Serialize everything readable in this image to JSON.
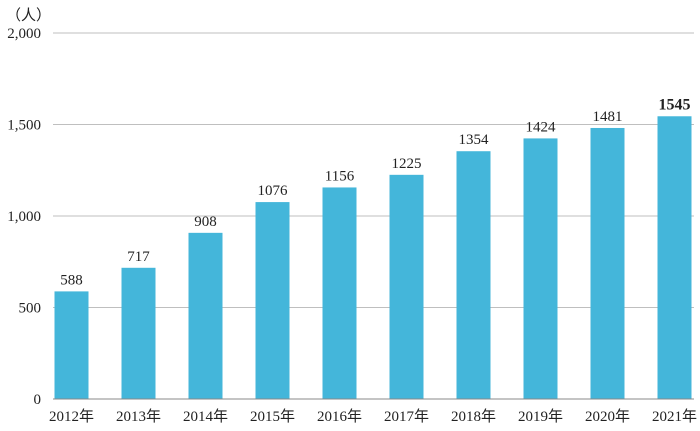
{
  "chart_data": {
    "type": "bar",
    "unit_label": "（人）",
    "categories": [
      "2012年",
      "2013年",
      "2014年",
      "2015年",
      "2016年",
      "2017年",
      "2018年",
      "2019年",
      "2020年",
      "2021年"
    ],
    "series": [
      {
        "values": [
          588,
          717,
          908,
          1076,
          1156,
          1225,
          1354,
          1424,
          1481,
          1545
        ]
      }
    ],
    "data_labels": [
      "588",
      "717",
      "908",
      "1076",
      "1156",
      "1225",
      "1354",
      "1424",
      "1481",
      "1545"
    ],
    "emphasized_index": 9,
    "ylim": [
      0,
      2000
    ],
    "y_ticks": [
      0,
      500,
      1000,
      1500,
      2000
    ],
    "y_tick_labels": [
      "0",
      "500",
      "1,000",
      "1,500",
      "2,000"
    ],
    "grid": true,
    "bar_color": "#44b6da",
    "grid_color": "#bfbfbf",
    "axis_color": "#888888",
    "text_color": "#222222"
  }
}
